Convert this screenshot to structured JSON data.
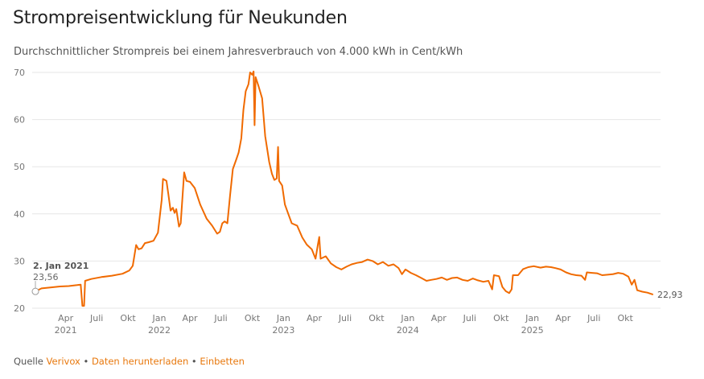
{
  "header": {
    "title": "Strompreisentwicklung für Neukunden",
    "subtitle": "Durchschnittlicher Strompreis bei einem Jahresverbrauch von 4.000 kWh in Cent/kWh"
  },
  "footer": {
    "source_label": "Quelle",
    "source_link": "Verivox",
    "download_link": "Daten herunterladen",
    "embed_link": "Einbetten",
    "separator": "•"
  },
  "colors": {
    "line": "#f06a00",
    "grid": "#e6e6e6",
    "axis_text": "#777777",
    "link": "#e8780d"
  },
  "chart_data": {
    "type": "line",
    "title": "Strompreisentwicklung für Neukunden",
    "subtitle": "Durchschnittlicher Strompreis bei einem Jahresverbrauch von 4.000 kWh in Cent/kWh",
    "ylim": [
      20,
      70
    ],
    "yticks": [
      "20",
      "30",
      "40",
      "50",
      "60",
      "70"
    ],
    "xlim": [
      "2021-01-02",
      "2025-12-20"
    ],
    "grid": true,
    "xticks": [
      {
        "date": "2021-04-01",
        "label": "Apr",
        "year": "2021"
      },
      {
        "date": "2021-07-01",
        "label": "Juli",
        "year": ""
      },
      {
        "date": "2021-10-01",
        "label": "Okt",
        "year": ""
      },
      {
        "date": "2022-01-01",
        "label": "Jan",
        "year": "2022"
      },
      {
        "date": "2022-04-01",
        "label": "Apr",
        "year": ""
      },
      {
        "date": "2022-07-01",
        "label": "Juli",
        "year": ""
      },
      {
        "date": "2022-10-01",
        "label": "Okt",
        "year": ""
      },
      {
        "date": "2023-01-01",
        "label": "Jan",
        "year": "2023"
      },
      {
        "date": "2023-04-01",
        "label": "Apr",
        "year": ""
      },
      {
        "date": "2023-07-01",
        "label": "Juli",
        "year": ""
      },
      {
        "date": "2023-10-01",
        "label": "Okt",
        "year": ""
      },
      {
        "date": "2024-01-01",
        "label": "Jan",
        "year": "2024"
      },
      {
        "date": "2024-04-01",
        "label": "Apr",
        "year": ""
      },
      {
        "date": "2024-07-01",
        "label": "Juli",
        "year": ""
      },
      {
        "date": "2024-10-01",
        "label": "Okt",
        "year": ""
      },
      {
        "date": "2025-01-01",
        "label": "Jan",
        "year": "2025"
      },
      {
        "date": "2025-04-01",
        "label": "Apr",
        "year": ""
      },
      {
        "date": "2025-07-01",
        "label": "Juli",
        "year": ""
      },
      {
        "date": "2025-10-01",
        "label": "Okt",
        "year": ""
      }
    ],
    "series": [
      {
        "points": [
          [
            "2021-01-02",
            23.56
          ],
          [
            "2021-01-20",
            24.2
          ],
          [
            "2021-02-15",
            24.4
          ],
          [
            "2021-03-15",
            24.6
          ],
          [
            "2021-04-10",
            24.7
          ],
          [
            "2021-05-05",
            24.9
          ],
          [
            "2021-05-15",
            25.0
          ],
          [
            "2021-05-20",
            20.5
          ],
          [
            "2021-05-25",
            20.5
          ],
          [
            "2021-05-28",
            25.8
          ],
          [
            "2021-06-15",
            26.2
          ],
          [
            "2021-07-15",
            26.6
          ],
          [
            "2021-08-15",
            26.9
          ],
          [
            "2021-09-15",
            27.3
          ],
          [
            "2021-10-05",
            28.0
          ],
          [
            "2021-10-15",
            29.0
          ],
          [
            "2021-10-25",
            33.4
          ],
          [
            "2021-11-01",
            32.5
          ],
          [
            "2021-11-10",
            32.7
          ],
          [
            "2021-11-20",
            33.8
          ],
          [
            "2021-12-01",
            34.0
          ],
          [
            "2021-12-15",
            34.3
          ],
          [
            "2021-12-28",
            36.0
          ],
          [
            "2022-01-08",
            43.0
          ],
          [
            "2022-01-12",
            47.4
          ],
          [
            "2022-01-22",
            47.0
          ],
          [
            "2022-01-28",
            44.0
          ],
          [
            "2022-02-03",
            40.7
          ],
          [
            "2022-02-10",
            41.3
          ],
          [
            "2022-02-15",
            40.2
          ],
          [
            "2022-02-20",
            41.0
          ],
          [
            "2022-02-28",
            37.3
          ],
          [
            "2022-03-05",
            38.0
          ],
          [
            "2022-03-15",
            48.8
          ],
          [
            "2022-03-22",
            47.0
          ],
          [
            "2022-04-01",
            46.8
          ],
          [
            "2022-04-15",
            45.5
          ],
          [
            "2022-05-01",
            42.0
          ],
          [
            "2022-05-20",
            39.0
          ],
          [
            "2022-06-05",
            37.5
          ],
          [
            "2022-06-20",
            35.8
          ],
          [
            "2022-06-28",
            36.2
          ],
          [
            "2022-07-05",
            38.0
          ],
          [
            "2022-07-12",
            38.4
          ],
          [
            "2022-07-20",
            38.0
          ],
          [
            "2022-07-28",
            44.0
          ],
          [
            "2022-08-05",
            49.5
          ],
          [
            "2022-08-15",
            51.5
          ],
          [
            "2022-08-22",
            53.0
          ],
          [
            "2022-08-30",
            56.0
          ],
          [
            "2022-09-05",
            62.0
          ],
          [
            "2022-09-12",
            66.0
          ],
          [
            "2022-09-20",
            67.5
          ],
          [
            "2022-09-25",
            70.0
          ],
          [
            "2022-10-01",
            69.5
          ],
          [
            "2022-10-05",
            70.2
          ],
          [
            "2022-10-08",
            58.8
          ],
          [
            "2022-10-11",
            69.0
          ],
          [
            "2022-10-20",
            67.0
          ],
          [
            "2022-10-30",
            64.5
          ],
          [
            "2022-11-08",
            56.5
          ],
          [
            "2022-11-20",
            51.0
          ],
          [
            "2022-11-28",
            48.5
          ],
          [
            "2022-12-05",
            47.2
          ],
          [
            "2022-12-12",
            47.5
          ],
          [
            "2022-12-16",
            54.2
          ],
          [
            "2022-12-19",
            47.0
          ],
          [
            "2022-12-28",
            46.0
          ],
          [
            "2023-01-05",
            42.0
          ],
          [
            "2023-01-15",
            40.0
          ],
          [
            "2023-01-25",
            38.0
          ],
          [
            "2023-02-10",
            37.5
          ],
          [
            "2023-02-25",
            35.0
          ],
          [
            "2023-03-10",
            33.5
          ],
          [
            "2023-03-25",
            32.5
          ],
          [
            "2023-04-05",
            30.5
          ],
          [
            "2023-04-12",
            33.5
          ],
          [
            "2023-04-16",
            35.1
          ],
          [
            "2023-04-20",
            30.5
          ],
          [
            "2023-05-05",
            31.0
          ],
          [
            "2023-05-20",
            29.5
          ],
          [
            "2023-06-05",
            28.7
          ],
          [
            "2023-06-20",
            28.2
          ],
          [
            "2023-07-05",
            28.8
          ],
          [
            "2023-07-20",
            29.3
          ],
          [
            "2023-08-05",
            29.6
          ],
          [
            "2023-08-20",
            29.8
          ],
          [
            "2023-09-05",
            30.3
          ],
          [
            "2023-09-20",
            30.0
          ],
          [
            "2023-10-05",
            29.3
          ],
          [
            "2023-10-20",
            29.8
          ],
          [
            "2023-11-05",
            29.0
          ],
          [
            "2023-11-20",
            29.3
          ],
          [
            "2023-12-05",
            28.5
          ],
          [
            "2023-12-15",
            27.2
          ],
          [
            "2023-12-25",
            28.2
          ],
          [
            "2024-01-10",
            27.5
          ],
          [
            "2024-01-25",
            27.0
          ],
          [
            "2024-02-10",
            26.4
          ],
          [
            "2024-02-25",
            25.8
          ],
          [
            "2024-03-10",
            26.0
          ],
          [
            "2024-03-25",
            26.2
          ],
          [
            "2024-04-10",
            26.5
          ],
          [
            "2024-04-25",
            26.0
          ],
          [
            "2024-05-10",
            26.4
          ],
          [
            "2024-05-25",
            26.5
          ],
          [
            "2024-06-10",
            26.0
          ],
          [
            "2024-06-25",
            25.8
          ],
          [
            "2024-07-10",
            26.3
          ],
          [
            "2024-07-25",
            25.9
          ],
          [
            "2024-08-10",
            25.6
          ],
          [
            "2024-08-25",
            25.8
          ],
          [
            "2024-09-05",
            24.0
          ],
          [
            "2024-09-10",
            27.0
          ],
          [
            "2024-09-25",
            26.8
          ],
          [
            "2024-10-05",
            24.5
          ],
          [
            "2024-10-15",
            23.6
          ],
          [
            "2024-10-25",
            23.2
          ],
          [
            "2024-11-01",
            24.0
          ],
          [
            "2024-11-05",
            27.0
          ],
          [
            "2024-11-20",
            27.0
          ],
          [
            "2024-12-05",
            28.3
          ],
          [
            "2024-12-20",
            28.7
          ],
          [
            "2025-01-05",
            28.9
          ],
          [
            "2025-01-25",
            28.6
          ],
          [
            "2025-02-10",
            28.8
          ],
          [
            "2025-02-25",
            28.7
          ],
          [
            "2025-03-10",
            28.5
          ],
          [
            "2025-03-25",
            28.2
          ],
          [
            "2025-04-10",
            27.6
          ],
          [
            "2025-04-25",
            27.2
          ],
          [
            "2025-05-10",
            27.0
          ],
          [
            "2025-05-25",
            26.9
          ],
          [
            "2025-06-05",
            26.0
          ],
          [
            "2025-06-10",
            27.6
          ],
          [
            "2025-06-25",
            27.5
          ],
          [
            "2025-07-10",
            27.4
          ],
          [
            "2025-07-25",
            27.0
          ],
          [
            "2025-08-10",
            27.1
          ],
          [
            "2025-08-25",
            27.2
          ],
          [
            "2025-09-10",
            27.5
          ],
          [
            "2025-09-25",
            27.3
          ],
          [
            "2025-10-10",
            26.7
          ],
          [
            "2025-10-20",
            25.0
          ],
          [
            "2025-10-28",
            26.0
          ],
          [
            "2025-11-05",
            23.8
          ],
          [
            "2025-11-20",
            23.5
          ],
          [
            "2025-12-05",
            23.3
          ],
          [
            "2025-12-20",
            22.93
          ]
        ]
      }
    ],
    "annotations": {
      "start": {
        "date_label": "2. Jan 2021",
        "value_label": "23,56"
      },
      "end": {
        "value_label": "22,93"
      }
    }
  }
}
